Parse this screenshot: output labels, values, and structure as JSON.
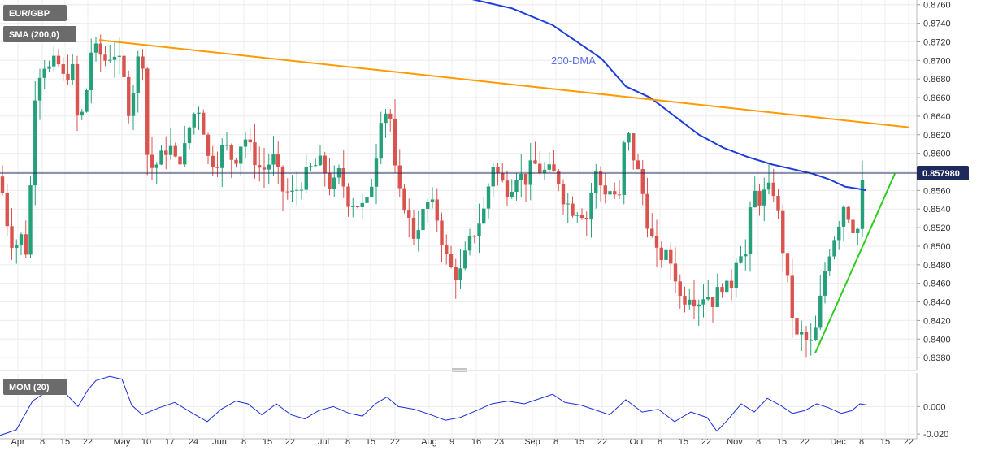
{
  "symbol_label": "EUR/GBP",
  "sma_label": "SMA (200,0)",
  "mom_label": "MOM (20)",
  "dma_label": "200-DMA",
  "last_price": "0.857980",
  "colors": {
    "up": "#26a07a",
    "down": "#d9534f",
    "sma": "#1f3ddc",
    "trend_upper": "#ff9a00",
    "trend_lower": "#2ecc1f",
    "mom": "#1a2fd9",
    "price_line": "#1f2a5c",
    "tag_bg": "#6b6b6b",
    "price_tag_bg": "#1f2a5c"
  },
  "chart_data": [
    {
      "type": "candlestick",
      "title": "EUR/GBP",
      "x_tick_labels": [
        "Apr",
        "8",
        "15",
        "22",
        "May",
        "10",
        "17",
        "24",
        "Jun",
        "8",
        "15",
        "22",
        "Jul",
        "8",
        "15",
        "22",
        "Aug",
        "9",
        "16",
        "23",
        "Sep",
        "8",
        "15",
        "22",
        "Oct",
        "8",
        "15",
        "22",
        "Nov",
        "8",
        "15",
        "22",
        "Dec",
        "8",
        "15",
        "22"
      ],
      "y_tick_labels": [
        "0.8760",
        "0.8740",
        "0.8720",
        "0.8700",
        "0.8680",
        "0.8660",
        "0.8640",
        "0.8620",
        "0.8600",
        "0.8580",
        "0.8560",
        "0.8540",
        "0.8520",
        "0.8500",
        "0.8480",
        "0.8460",
        "0.8440",
        "0.8420",
        "0.8400",
        "0.8380"
      ],
      "ylim": [
        0.8367,
        0.8765
      ],
      "grid": true,
      "sma_200": [
        [
          0.878,
          0.8779
        ],
        [
          0.8774,
          0.8772
        ],
        [
          0.8766,
          0.8765
        ],
        [
          0.8756,
          0.8755
        ],
        [
          0.8738,
          0.8742
        ],
        [
          0.872,
          0.8725
        ],
        [
          0.8702,
          0.8708
        ],
        [
          0.8672,
          0.8684
        ],
        [
          0.866,
          0.8662
        ],
        [
          0.864,
          0.8647
        ],
        [
          0.862,
          0.8626
        ],
        [
          0.8606,
          0.8612
        ],
        [
          0.8596,
          0.8603
        ],
        [
          0.8588,
          0.8592
        ],
        [
          0.8582,
          0.8584
        ],
        [
          0.8578,
          0.8578
        ],
        [
          0.8572,
          0.8572
        ],
        [
          0.8564,
          0.8566
        ],
        [
          0.8562,
          0.8561
        ],
        [
          0.856,
          0.856
        ]
      ],
      "trendline_upper": [
        [
          0.8722,
          0.8628
        ]
      ],
      "trendline_lower": [
        [
          0.8385,
          0.8578
        ]
      ],
      "annotations": [
        "200-DMA"
      ]
    },
    {
      "type": "line",
      "title": "MOM (20)",
      "y_tick_labels": [
        "0.000",
        "-0.020"
      ],
      "ylim": [
        -0.0235,
        0.0245
      ]
    }
  ]
}
